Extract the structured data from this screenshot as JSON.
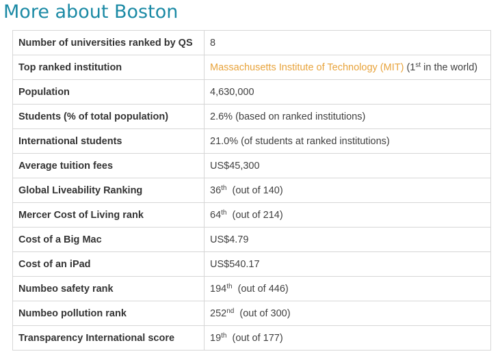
{
  "page": {
    "title": "More about Boston"
  },
  "colors": {
    "heading": "#1b8aa5",
    "link": "#e8a33b",
    "border": "#d6d6d6"
  },
  "rows": [
    {
      "label": "Number of universities ranked by QS",
      "value": "8"
    },
    {
      "label": "Top ranked institution",
      "link": "Massachusetts Institute of Technology (MIT)",
      "value_prefix": " (1",
      "sup": "st",
      "value": " in the world)"
    },
    {
      "label": "Population",
      "value": "4,630,000"
    },
    {
      "label": "Students (% of total population)",
      "value": "2.6% (based on ranked institutions)"
    },
    {
      "label": "International students",
      "value": "21.0% (of students at ranked institutions)"
    },
    {
      "label": "Average tuition fees",
      "value": "US$45,300"
    },
    {
      "label": "Global Liveability Ranking",
      "value_prefix": "36",
      "sup": "th",
      "value": "  (out of 140)"
    },
    {
      "label": "Mercer Cost of Living rank",
      "value_prefix": "64",
      "sup": "th",
      "value": "  (out of 214)"
    },
    {
      "label": "Cost of a Big Mac",
      "value": "US$4.79"
    },
    {
      "label": "Cost of an iPad",
      "value": "US$540.17"
    },
    {
      "label": "Numbeo safety rank",
      "value_prefix": "194",
      "sup": "th",
      "value": "  (out of 446)"
    },
    {
      "label": "Numbeo pollution rank",
      "value_prefix": "252",
      "sup": "nd",
      "value": "  (out of 300)"
    },
    {
      "label": "Transparency International score",
      "value_prefix": "19",
      "sup": "th",
      "value": "  (out of 177)"
    }
  ]
}
